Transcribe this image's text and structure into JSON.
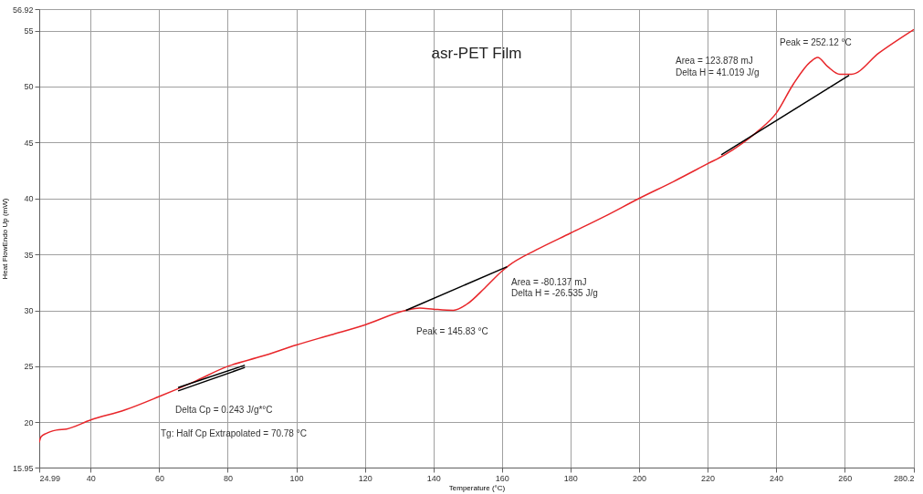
{
  "chart_data": {
    "type": "line",
    "title": "asr-PET Film",
    "xlabel": "Temperature (°C)",
    "ylabel": "Heat FlowEndo Up (mW)",
    "xlim": [
      24.99,
      280.2
    ],
    "xticks": [
      24.99,
      40,
      60,
      80,
      100,
      120,
      140,
      160,
      180,
      200,
      220,
      240,
      260,
      280.2
    ],
    "ylim": [
      15.95,
      56.92
    ],
    "yticks": [
      15.95,
      20,
      25,
      30,
      35,
      40,
      45,
      50,
      55,
      56.92
    ],
    "grid": true,
    "legend": false,
    "series": [
      {
        "color": "#e8262a",
        "x": [
          24.99,
          25.5,
          27,
          30,
          33,
          40,
          50,
          60,
          70,
          80,
          90,
          100,
          110,
          120,
          132,
          136,
          140,
          145.83,
          150,
          155,
          160,
          162,
          170,
          180,
          190,
          200,
          210,
          220,
          225,
          230,
          235,
          240,
          245,
          250,
          252.12,
          255,
          258.6,
          262,
          270,
          280.2
        ],
        "values": [
          18.2,
          18.7,
          19.0,
          19.3,
          19.4,
          20.2,
          21.1,
          22.3,
          23.6,
          25.0,
          25.9,
          26.9,
          27.8,
          28.7,
          30.0,
          30.2,
          30.1,
          30.0,
          30.6,
          32.0,
          33.5,
          34.0,
          35.4,
          36.9,
          38.4,
          40.0,
          41.5,
          43.1,
          43.9,
          44.9,
          46.1,
          47.6,
          50.2,
          52.2,
          52.6,
          51.8,
          51.1,
          51.1,
          53.0,
          55.1
        ]
      },
      {
        "color": "#000000",
        "x": [
          65.5,
          85
        ],
        "values": [
          23.1,
          25.1
        ]
      },
      {
        "color": "#000000",
        "x": [
          65.5,
          85
        ],
        "values": [
          22.8,
          24.9
        ]
      },
      {
        "color": "#000000",
        "x": [
          132,
          161.5
        ],
        "values": [
          30.0,
          33.9
        ]
      },
      {
        "color": "#000000",
        "x": [
          224,
          261.3
        ],
        "values": [
          43.9,
          51.0
        ]
      }
    ],
    "annotations": [
      "Peak = 252.12 °C",
      "Area = 123.878 mJ",
      "Delta H = 41.019 J/g",
      "Area = -80.137 mJ",
      "Delta H = -26.535 J/g",
      "Peak = 145.83 °C",
      "Delta Cp = 0.243 J/g*°C",
      "Tg: Half Cp Extrapolated = 70.78 °C"
    ]
  }
}
